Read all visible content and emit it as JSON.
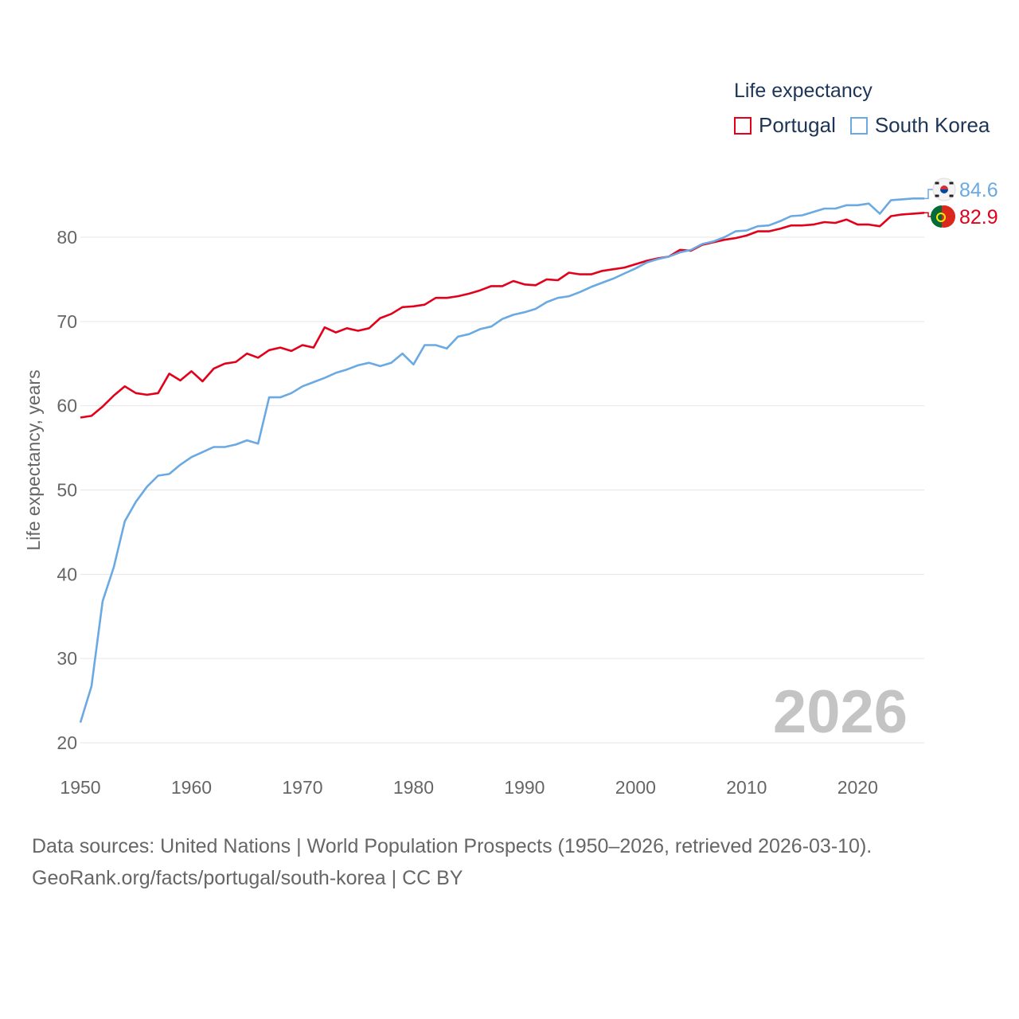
{
  "legend": {
    "title": "Life expectancy"
  },
  "footer": {
    "line1": "Data sources: United Nations | World Population Prospects (1950–2026, retrieved 2026-03-10).",
    "line2": "GeoRank.org/facts/portugal/south-korea | CC BY"
  },
  "chart_data": {
    "type": "line",
    "title": "Life expectancy",
    "ylabel": "Life expectancy, years",
    "xlabel": "",
    "xlim": [
      1950,
      2026
    ],
    "ylim": [
      20,
      85
    ],
    "yticks": [
      20,
      30,
      40,
      50,
      60,
      70,
      80
    ],
    "xticks": [
      1950,
      1960,
      1970,
      1980,
      1990,
      2000,
      2010,
      2020
    ],
    "year_watermark": "2026",
    "legend_position": "top-right",
    "series": [
      {
        "name": "Portugal",
        "color": "#e3001b",
        "flag_icon": "portugal-flag-icon",
        "end_label": "82.9",
        "x": [
          1950,
          1951,
          1952,
          1953,
          1954,
          1955,
          1956,
          1957,
          1958,
          1959,
          1960,
          1961,
          1962,
          1963,
          1964,
          1965,
          1966,
          1967,
          1968,
          1969,
          1970,
          1971,
          1972,
          1973,
          1974,
          1975,
          1976,
          1977,
          1978,
          1979,
          1980,
          1981,
          1982,
          1983,
          1984,
          1985,
          1986,
          1987,
          1988,
          1989,
          1990,
          1991,
          1992,
          1993,
          1994,
          1995,
          1996,
          1997,
          1998,
          1999,
          2000,
          2001,
          2002,
          2003,
          2004,
          2005,
          2006,
          2007,
          2008,
          2009,
          2010,
          2011,
          2012,
          2013,
          2014,
          2015,
          2016,
          2017,
          2018,
          2019,
          2020,
          2021,
          2022,
          2023,
          2024,
          2025,
          2026
        ],
        "values": [
          58.6,
          58.8,
          59.9,
          61.2,
          62.3,
          61.5,
          61.3,
          61.5,
          63.8,
          63.0,
          64.1,
          62.9,
          64.4,
          65.0,
          65.2,
          66.2,
          65.7,
          66.6,
          66.9,
          66.5,
          67.2,
          66.9,
          69.3,
          68.7,
          69.2,
          68.9,
          69.2,
          70.4,
          70.9,
          71.7,
          71.8,
          72.0,
          72.8,
          72.8,
          73.0,
          73.3,
          73.7,
          74.2,
          74.2,
          74.8,
          74.4,
          74.3,
          75.0,
          74.9,
          75.8,
          75.6,
          75.6,
          76.0,
          76.2,
          76.4,
          76.8,
          77.2,
          77.5,
          77.7,
          78.5,
          78.4,
          79.1,
          79.4,
          79.7,
          79.9,
          80.2,
          80.7,
          80.7,
          81.0,
          81.4,
          81.4,
          81.5,
          81.8,
          81.7,
          82.1,
          81.5,
          81.5,
          81.3,
          82.5,
          82.7,
          82.8,
          82.9
        ]
      },
      {
        "name": "South Korea",
        "color": "#6ba9e3",
        "flag_icon": "south-korea-flag-icon",
        "end_label": "84.6",
        "x": [
          1950,
          1951,
          1952,
          1953,
          1954,
          1955,
          1956,
          1957,
          1958,
          1959,
          1960,
          1961,
          1962,
          1963,
          1964,
          1965,
          1966,
          1967,
          1968,
          1969,
          1970,
          1971,
          1972,
          1973,
          1974,
          1975,
          1976,
          1977,
          1978,
          1979,
          1980,
          1981,
          1982,
          1983,
          1984,
          1985,
          1986,
          1987,
          1988,
          1989,
          1990,
          1991,
          1992,
          1993,
          1994,
          1995,
          1996,
          1997,
          1998,
          1999,
          2000,
          2001,
          2002,
          2003,
          2004,
          2005,
          2006,
          2007,
          2008,
          2009,
          2010,
          2011,
          2012,
          2013,
          2014,
          2015,
          2016,
          2017,
          2018,
          2019,
          2020,
          2021,
          2022,
          2023,
          2024,
          2025,
          2026
        ],
        "values": [
          22.4,
          26.7,
          36.8,
          40.8,
          46.3,
          48.6,
          50.4,
          51.7,
          51.9,
          53.0,
          53.9,
          54.5,
          55.1,
          55.1,
          55.4,
          55.9,
          55.5,
          61.0,
          61.0,
          61.5,
          62.3,
          62.8,
          63.3,
          63.9,
          64.3,
          64.8,
          65.1,
          64.7,
          65.1,
          66.2,
          64.9,
          67.2,
          67.2,
          66.8,
          68.2,
          68.5,
          69.1,
          69.4,
          70.3,
          70.8,
          71.1,
          71.5,
          72.3,
          72.8,
          73.0,
          73.5,
          74.1,
          74.6,
          75.1,
          75.7,
          76.3,
          77.0,
          77.4,
          77.7,
          78.2,
          78.5,
          79.2,
          79.5,
          80.0,
          80.7,
          80.8,
          81.3,
          81.4,
          81.9,
          82.5,
          82.6,
          83.0,
          83.4,
          83.4,
          83.8,
          83.8,
          84.0,
          82.8,
          84.4,
          84.5,
          84.6,
          84.6
        ]
      }
    ]
  }
}
